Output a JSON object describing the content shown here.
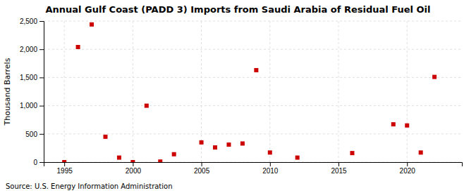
{
  "chart_data": {
    "type": "scatter",
    "title": "Annual Gulf Coast (PADD 3) Imports from Saudi Arabia of Residual Fuel Oil",
    "ylabel": "Thousand Barrels",
    "source": "Source: U.S. Energy Information Administration",
    "x": [
      1995,
      1996,
      1997,
      1998,
      1999,
      2000,
      2001,
      2002,
      2003,
      2005,
      2006,
      2007,
      2008,
      2009,
      2010,
      2012,
      2016,
      2019,
      2020,
      2021,
      2022
    ],
    "values": [
      0,
      2040,
      2440,
      450,
      80,
      0,
      1000,
      10,
      140,
      350,
      260,
      310,
      330,
      1630,
      170,
      80,
      160,
      670,
      650,
      170,
      1510
    ],
    "color": "#cc0000",
    "marker": "square",
    "xlim": [
      1993.5,
      2024
    ],
    "ylim": [
      0,
      2500
    ],
    "xticks": [
      1995,
      2000,
      2005,
      2010,
      2015,
      2020
    ],
    "yticks": [
      0,
      500,
      {
        "value": 1000,
        "label": "1,000"
      },
      {
        "value": 1500,
        "label": "1,500"
      },
      {
        "value": 2000,
        "label": "2,000"
      },
      {
        "value": 2500,
        "label": "2,500"
      }
    ],
    "grid": true
  }
}
